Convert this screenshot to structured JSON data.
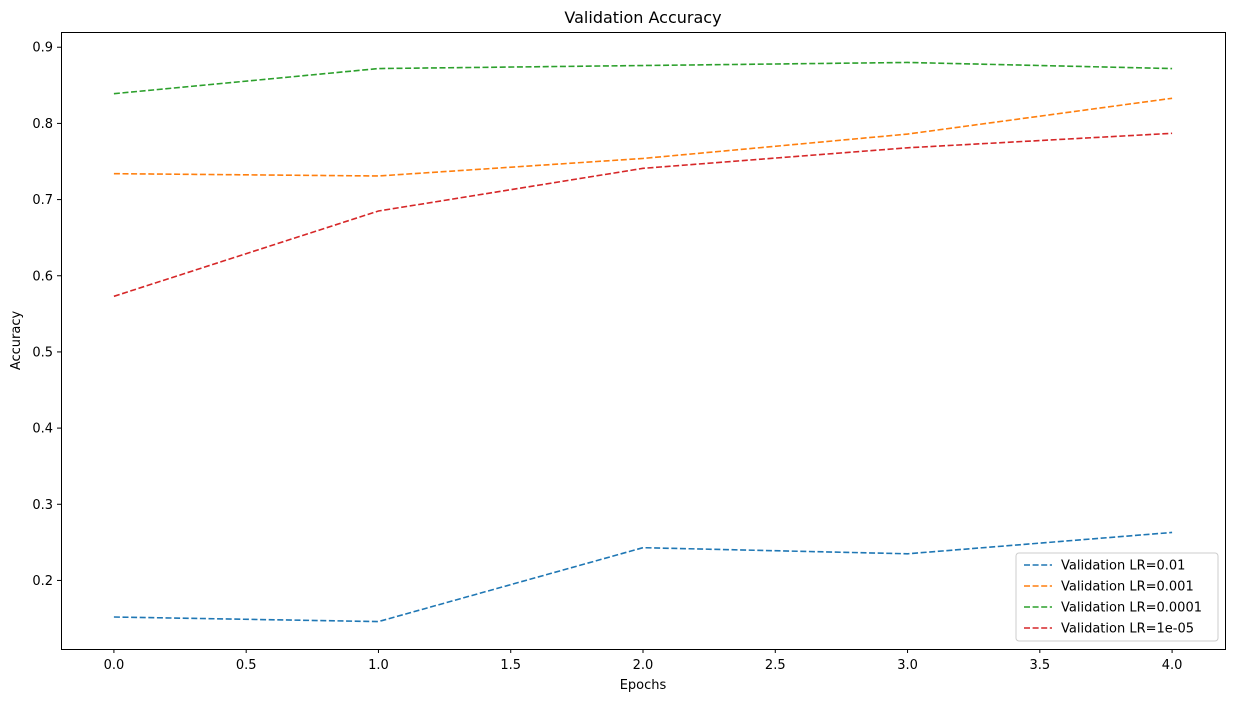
{
  "chart_data": {
    "type": "line",
    "title": "Validation Accuracy",
    "xlabel": "Epochs",
    "ylabel": "Accuracy",
    "x": [
      0,
      1,
      2,
      3,
      4
    ],
    "xlim": [
      -0.2,
      4.2
    ],
    "ylim": [
      0.11,
      0.92
    ],
    "xticks": [
      "0.0",
      "0.5",
      "1.0",
      "1.5",
      "2.0",
      "2.5",
      "3.0",
      "3.5",
      "4.0"
    ],
    "yticks": [
      "0.2",
      "0.3",
      "0.4",
      "0.5",
      "0.6",
      "0.7",
      "0.8",
      "0.9"
    ],
    "grid": false,
    "line_style": "dashed",
    "legend_position": "lower-right",
    "series": [
      {
        "name": "Validation LR=0.01",
        "color": "#1f77b4",
        "values": [
          0.152,
          0.146,
          0.243,
          0.235,
          0.263
        ]
      },
      {
        "name": "Validation LR=0.001",
        "color": "#ff7f0e",
        "values": [
          0.734,
          0.731,
          0.754,
          0.786,
          0.833
        ]
      },
      {
        "name": "Validation LR=0.0001",
        "color": "#2ca02c",
        "values": [
          0.839,
          0.872,
          0.876,
          0.88,
          0.872
        ]
      },
      {
        "name": "Validation LR=1e-05",
        "color": "#d62728",
        "values": [
          0.573,
          0.685,
          0.741,
          0.768,
          0.787
        ]
      }
    ]
  }
}
